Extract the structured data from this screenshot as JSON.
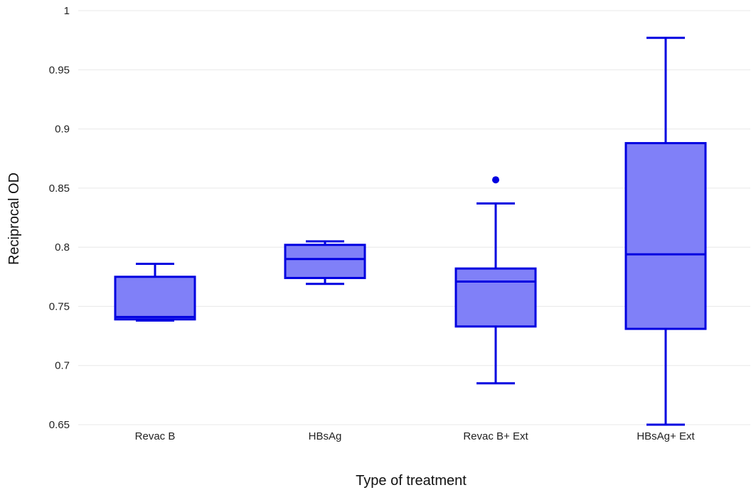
{
  "chart_data": {
    "type": "box",
    "title": "",
    "xlabel": "Type of treatment",
    "ylabel": "Reciprocal OD",
    "ylim": [
      0.65,
      1.0
    ],
    "yticks": [
      0.65,
      0.7,
      0.75,
      0.8,
      0.85,
      0.9,
      0.95,
      1
    ],
    "ytick_labels": [
      "0.65",
      "0.7",
      "0.75",
      "0.8",
      "0.85",
      "0.9",
      "0.95",
      "1"
    ],
    "grid": true,
    "legend": "none",
    "color": {
      "fill": "#8080f8",
      "stroke": "#0000e0"
    },
    "categories": [
      "Revac B",
      "HBsAg",
      "Revac B+ Ext",
      "HBsAg+ Ext"
    ],
    "boxes": [
      {
        "category": "Revac B",
        "min": 0.738,
        "q1": 0.739,
        "median": 0.741,
        "q3": 0.775,
        "max": 0.786,
        "outliers": []
      },
      {
        "category": "HBsAg",
        "min": 0.769,
        "q1": 0.774,
        "median": 0.79,
        "q3": 0.802,
        "max": 0.805,
        "outliers": []
      },
      {
        "category": "Revac B+ Ext",
        "min": 0.685,
        "q1": 0.733,
        "median": 0.771,
        "q3": 0.782,
        "max": 0.837,
        "outliers": [
          0.857
        ]
      },
      {
        "category": "HBsAg+ Ext",
        "min": 0.65,
        "q1": 0.731,
        "median": 0.794,
        "q3": 0.888,
        "max": 0.977,
        "outliers": []
      }
    ]
  }
}
